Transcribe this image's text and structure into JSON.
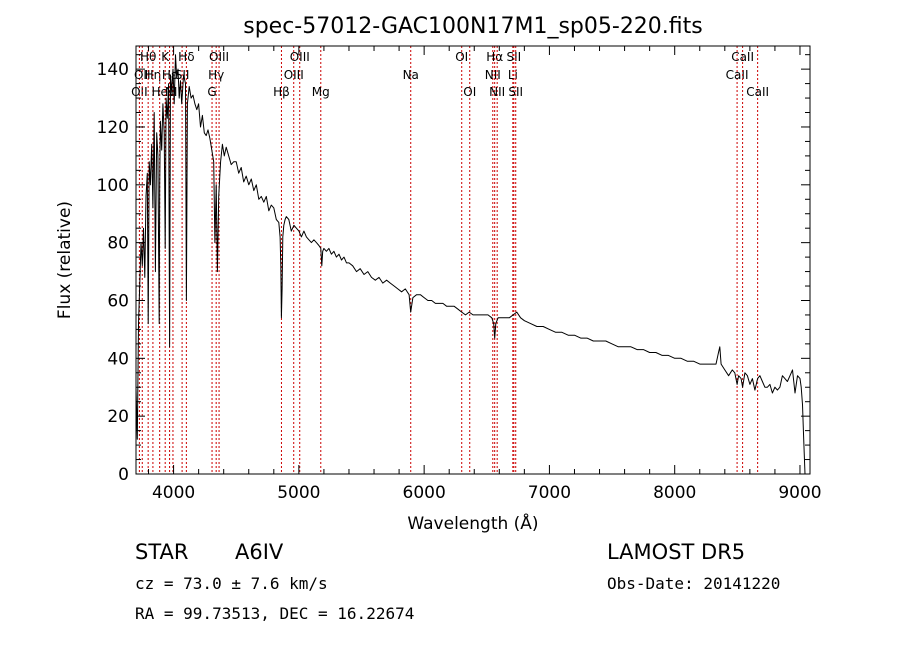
{
  "chart_data": {
    "type": "line",
    "title": "spec-57012-GAC100N17M1_sp05-220.fits",
    "xlabel": "Wavelength (Å)",
    "ylabel": "Flux (relative)",
    "xlim": [
      3700,
      9080
    ],
    "ylim": [
      0,
      148
    ],
    "xticks": [
      4000,
      5000,
      6000,
      7000,
      8000,
      9000
    ],
    "yticks": [
      0,
      20,
      40,
      60,
      80,
      100,
      120,
      140
    ],
    "grid": false,
    "line_color": "#000000",
    "marker_color": "#cc0000",
    "series": [
      {
        "x": [
          3700,
          3710,
          3720,
          3730,
          3740,
          3750,
          3760,
          3770,
          3780,
          3790,
          3797,
          3805,
          3815,
          3825,
          3835,
          3845,
          3855,
          3865,
          3875,
          3885,
          3889,
          3895,
          3905,
          3915,
          3925,
          3933,
          3940,
          3950,
          3960,
          3968,
          3975,
          3985,
          3995,
          4005,
          4015,
          4025,
          4035,
          4045,
          4055,
          4065,
          4080,
          4095,
          4102,
          4110,
          4125,
          4140,
          4155,
          4170,
          4185,
          4200,
          4215,
          4230,
          4245,
          4260,
          4275,
          4290,
          4305,
          4320,
          4330,
          4340,
          4350,
          4360,
          4375,
          4390,
          4405,
          4420,
          4440,
          4460,
          4481,
          4500,
          4520,
          4540,
          4560,
          4580,
          4600,
          4620,
          4640,
          4660,
          4680,
          4700,
          4720,
          4740,
          4760,
          4780,
          4800,
          4820,
          4840,
          4850,
          4856,
          4861,
          4866,
          4872,
          4880,
          4890,
          4900,
          4920,
          4940,
          4960,
          4980,
          5000,
          5020,
          5040,
          5060,
          5080,
          5100,
          5120,
          5140,
          5160,
          5175,
          5183,
          5190,
          5200,
          5220,
          5240,
          5260,
          5280,
          5300,
          5320,
          5340,
          5360,
          5380,
          5400,
          5430,
          5460,
          5490,
          5520,
          5550,
          5580,
          5610,
          5640,
          5670,
          5700,
          5730,
          5760,
          5790,
          5820,
          5850,
          5880,
          5893,
          5910,
          5940,
          5970,
          6000,
          6030,
          6060,
          6090,
          6120,
          6150,
          6180,
          6210,
          6240,
          6270,
          6300,
          6330,
          6360,
          6390,
          6420,
          6450,
          6480,
          6510,
          6540,
          6555,
          6563,
          6572,
          6590,
          6620,
          6650,
          6680,
          6710,
          6740,
          6770,
          6800,
          6850,
          6900,
          6950,
          7000,
          7050,
          7100,
          7150,
          7200,
          7250,
          7300,
          7350,
          7400,
          7450,
          7500,
          7550,
          7600,
          7650,
          7700,
          7750,
          7800,
          7850,
          7900,
          7950,
          8000,
          8050,
          8100,
          8150,
          8200,
          8250,
          8300,
          8330,
          8350,
          8360,
          8370,
          8400,
          8430,
          8460,
          8480,
          8498,
          8510,
          8530,
          8542,
          8560,
          8580,
          8600,
          8620,
          8640,
          8662,
          8680,
          8700,
          8720,
          8740,
          8760,
          8780,
          8800,
          8820,
          8840,
          8860,
          8880,
          8900,
          8920,
          8940,
          8960,
          8980,
          9000,
          9010,
          9020,
          9030,
          9040
        ],
        "y": [
          30,
          12,
          52,
          66,
          80,
          72,
          85,
          68,
          96,
          104,
          52,
          108,
          100,
          114,
          92,
          125,
          70,
          118,
          110,
          52,
          100,
          122,
          112,
          128,
          118,
          78,
          130,
          123,
          135,
          44,
          138,
          132,
          140,
          128,
          145,
          137,
          140,
          130,
          136,
          128,
          138,
          135,
          60,
          128,
          134,
          130,
          131,
          128,
          126,
          128,
          120,
          124,
          118,
          117,
          119,
          116,
          112,
          108,
          80,
          100,
          70,
          96,
          108,
          114,
          110,
          113,
          110,
          107,
          108,
          108,
          104,
          106,
          101,
          103,
          100,
          102,
          98,
          100,
          95,
          96,
          94,
          96,
          91,
          93,
          92,
          88,
          87,
          82,
          72,
          54,
          64,
          82,
          86,
          88,
          89,
          88,
          84,
          86,
          85,
          84,
          82,
          84,
          82,
          81,
          80,
          81,
          80,
          79,
          78,
          72,
          77,
          78,
          77,
          78,
          76,
          77,
          75,
          76,
          74,
          75,
          73,
          73,
          72,
          70,
          71,
          69,
          70,
          68,
          67,
          68,
          66,
          67,
          66,
          65,
          64,
          63,
          64,
          62,
          56,
          61,
          62,
          62,
          61,
          60,
          60,
          59,
          59,
          59,
          58,
          58,
          58,
          57,
          56,
          55,
          56,
          55,
          55,
          55,
          55,
          55,
          54,
          52,
          47,
          52,
          54,
          54,
          54,
          54,
          55,
          56,
          54,
          53,
          52,
          51,
          51,
          50,
          49,
          49,
          48,
          48,
          47,
          47,
          46,
          46,
          46,
          45,
          44,
          44,
          44,
          43,
          43,
          42,
          42,
          41,
          41,
          40,
          40,
          39,
          39,
          38,
          38,
          38,
          38,
          42,
          44,
          38,
          36,
          34,
          36,
          35,
          31,
          34,
          33,
          30,
          35,
          34,
          31,
          33,
          29,
          33,
          34,
          32,
          30,
          30,
          31,
          28,
          30,
          29,
          30,
          34,
          33,
          32,
          34,
          36,
          28,
          34,
          33,
          30,
          24,
          12,
          0
        ]
      }
    ],
    "line_markers": [
      {
        "x": 3727,
        "label": "OII",
        "row": 3
      },
      {
        "x": 3750,
        "label": "OII",
        "row": 2
      },
      {
        "x": 3797,
        "label": "Hθ",
        "row": 1
      },
      {
        "x": 3835,
        "label": "Hη",
        "row": 2
      },
      {
        "x": 3889,
        "label": "He",
        "row": 3
      },
      {
        "x": 3933,
        "label": "K",
        "row": 1
      },
      {
        "x": 3968,
        "label": "Hε",
        "row": 2
      },
      {
        "x": 3995,
        "label": "NII",
        "row": 3
      },
      {
        "x": 4068,
        "label": "SII",
        "row": 2
      },
      {
        "x": 4102,
        "label": "Hδ",
        "row": 1
      },
      {
        "x": 4307,
        "label": "G",
        "row": 3
      },
      {
        "x": 4340,
        "label": "Hγ",
        "row": 2
      },
      {
        "x": 4363,
        "label": "OIII",
        "row": 1
      },
      {
        "x": 4861,
        "label": "Hβ",
        "row": 3
      },
      {
        "x": 4959,
        "label": "OIII",
        "row": 2
      },
      {
        "x": 5007,
        "label": "OIII",
        "row": 1
      },
      {
        "x": 5175,
        "label": "Mg",
        "row": 3
      },
      {
        "x": 5893,
        "label": "Na",
        "row": 2
      },
      {
        "x": 6300,
        "label": "OI",
        "row": 1
      },
      {
        "x": 6364,
        "label": "OI",
        "row": 3
      },
      {
        "x": 6548,
        "label": "NII",
        "row": 2
      },
      {
        "x": 6563,
        "label": "Hα",
        "row": 1
      },
      {
        "x": 6583,
        "label": "NII",
        "row": 3
      },
      {
        "x": 6708,
        "label": "Li",
        "row": 2
      },
      {
        "x": 6716,
        "label": "SII",
        "row": 1
      },
      {
        "x": 6731,
        "label": "SII",
        "row": 3
      },
      {
        "x": 8498,
        "label": "CaII",
        "row": 2
      },
      {
        "x": 8542,
        "label": "CaII",
        "row": 1
      },
      {
        "x": 8662,
        "label": "CaII",
        "row": 3
      }
    ]
  },
  "info": {
    "class_label": "STAR",
    "subclass": "A6IV",
    "survey": "LAMOST DR5",
    "redshift": "cz = 73.0 ± 7.6 km/s",
    "obs_date": "Obs-Date: 20141220",
    "coords": "RA =  99.73513, DEC =  16.22674"
  }
}
